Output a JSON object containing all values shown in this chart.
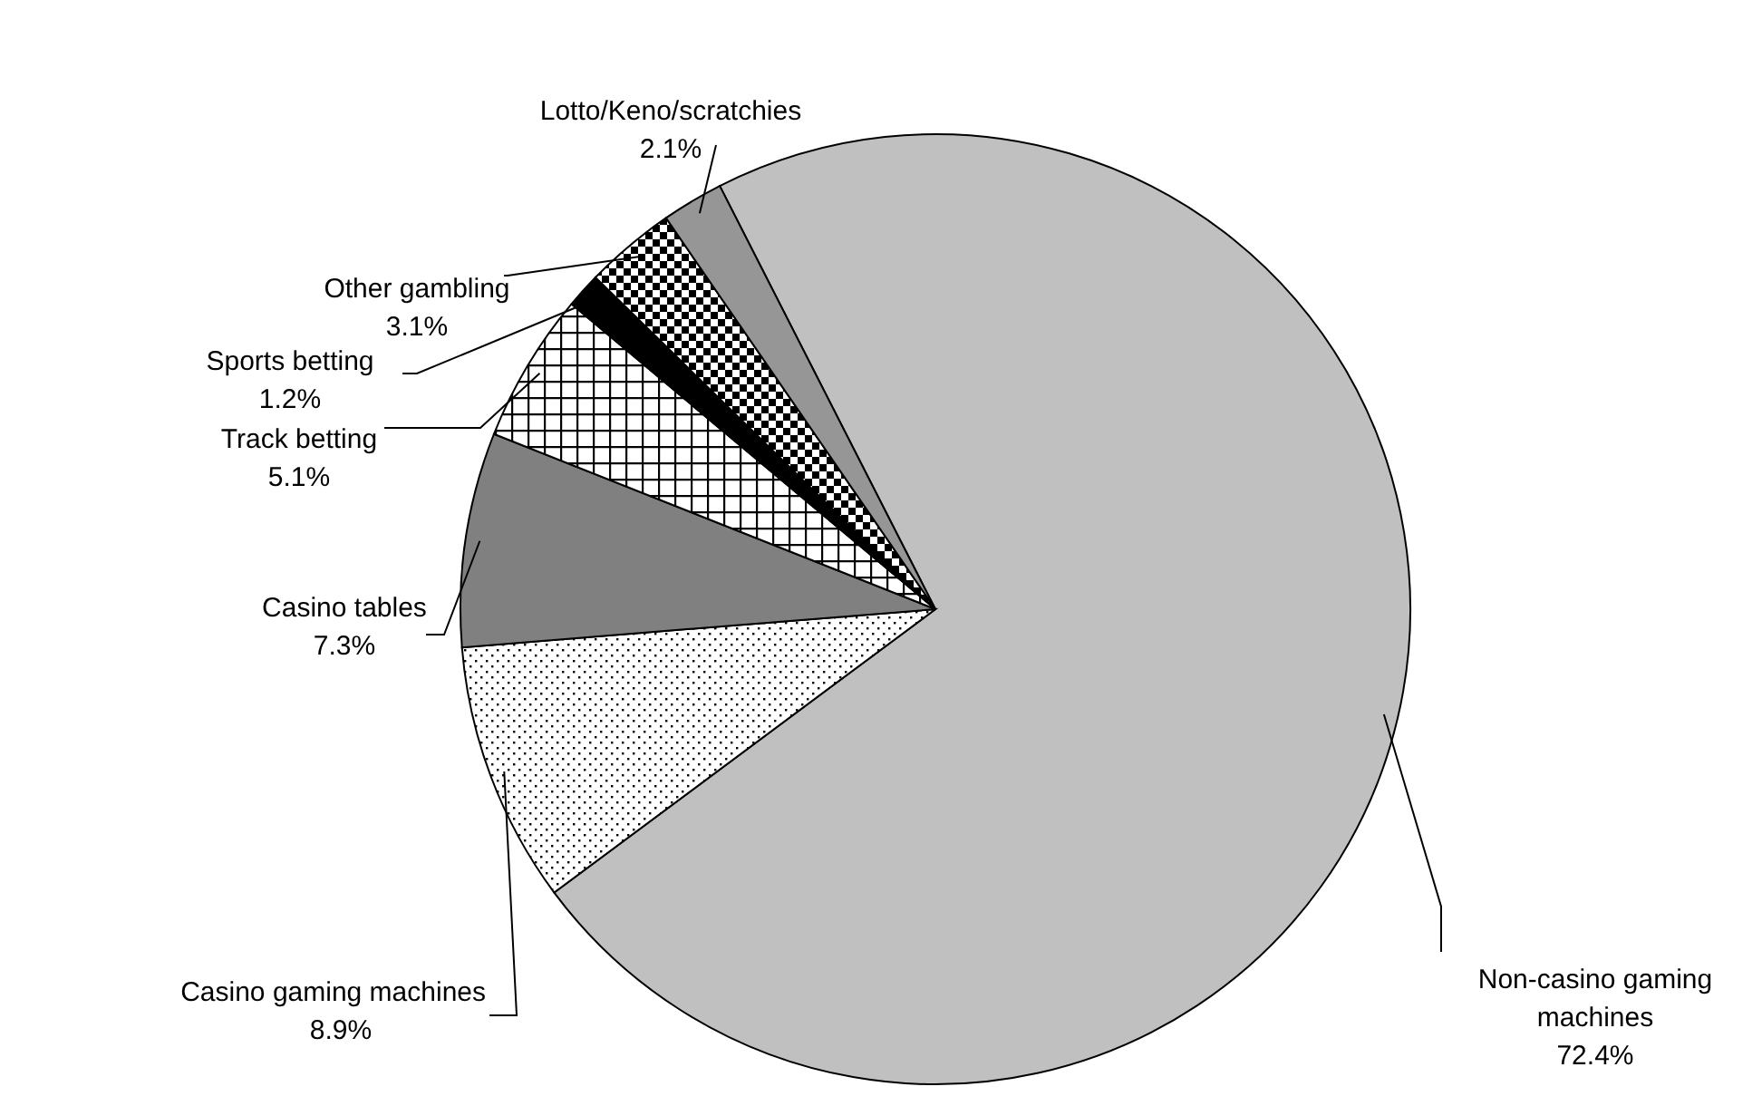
{
  "chart_data": {
    "type": "pie",
    "categories": [
      "Non-casino gaming machines",
      "Casino gaming machines",
      "Casino tables",
      "Track betting",
      "Sports betting",
      "Other gambling",
      "Lotto/Keno/scratchies"
    ],
    "values": [
      72.4,
      8.9,
      7.3,
      5.1,
      1.2,
      3.1,
      2.1
    ],
    "colors": [
      "#c0c0c0",
      "#ffffff",
      "#808080",
      "#ffffff",
      "#000000",
      "#ffffff",
      "#969696"
    ],
    "value_labels": [
      "72.4%",
      "8.9%",
      "7.3%",
      "5.1%",
      "1.2%",
      "3.1%",
      "2.1%"
    ]
  }
}
